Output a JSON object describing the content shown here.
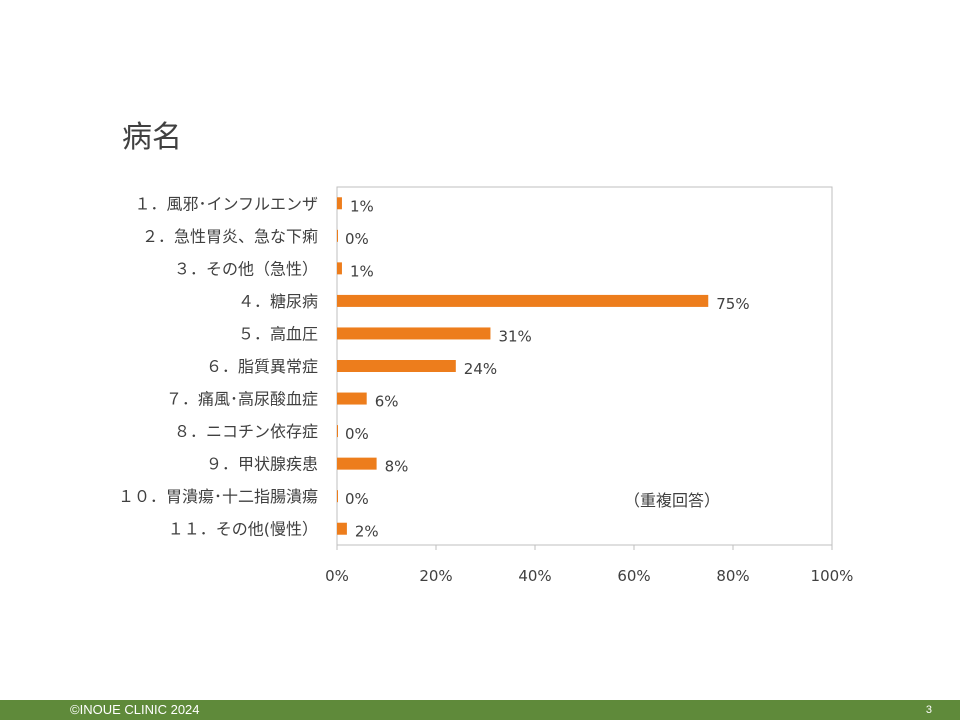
{
  "slide": {
    "title": "病名",
    "footer_text": "©INOUE CLINIC 2024",
    "page_number": "3"
  },
  "colors": {
    "bar": "#ed7d1c",
    "footer": "#5f8a3a",
    "frame": "#bfbfbf",
    "text": "#404040"
  },
  "chart_data": {
    "type": "bar",
    "orientation": "horizontal",
    "categories": [
      "１．風邪･インフルエンザ",
      "２．急性胃炎、急な下痢",
      "３．その他（急性）",
      "４．糖尿病",
      "５．高血圧",
      "６．脂質異常症",
      "７．痛風･高尿酸血症",
      "８．ニコチン依存症",
      "９．甲状腺疾患",
      "１０．胃潰瘍･十二指腸潰瘍",
      "１１．その他(慢性）"
    ],
    "values": [
      1,
      0,
      1,
      75,
      31,
      24,
      6,
      0,
      8,
      0,
      2
    ],
    "value_labels": [
      "1%",
      "0%",
      "1%",
      "75%",
      "31%",
      "24%",
      "6%",
      "0%",
      "8%",
      "0%",
      "2%"
    ],
    "xlim": [
      0,
      100
    ],
    "x_ticks": [
      "0%",
      "20%",
      "40%",
      "60%",
      "80%",
      "100%"
    ],
    "annotation": "（重複回答）",
    "grid": false
  }
}
